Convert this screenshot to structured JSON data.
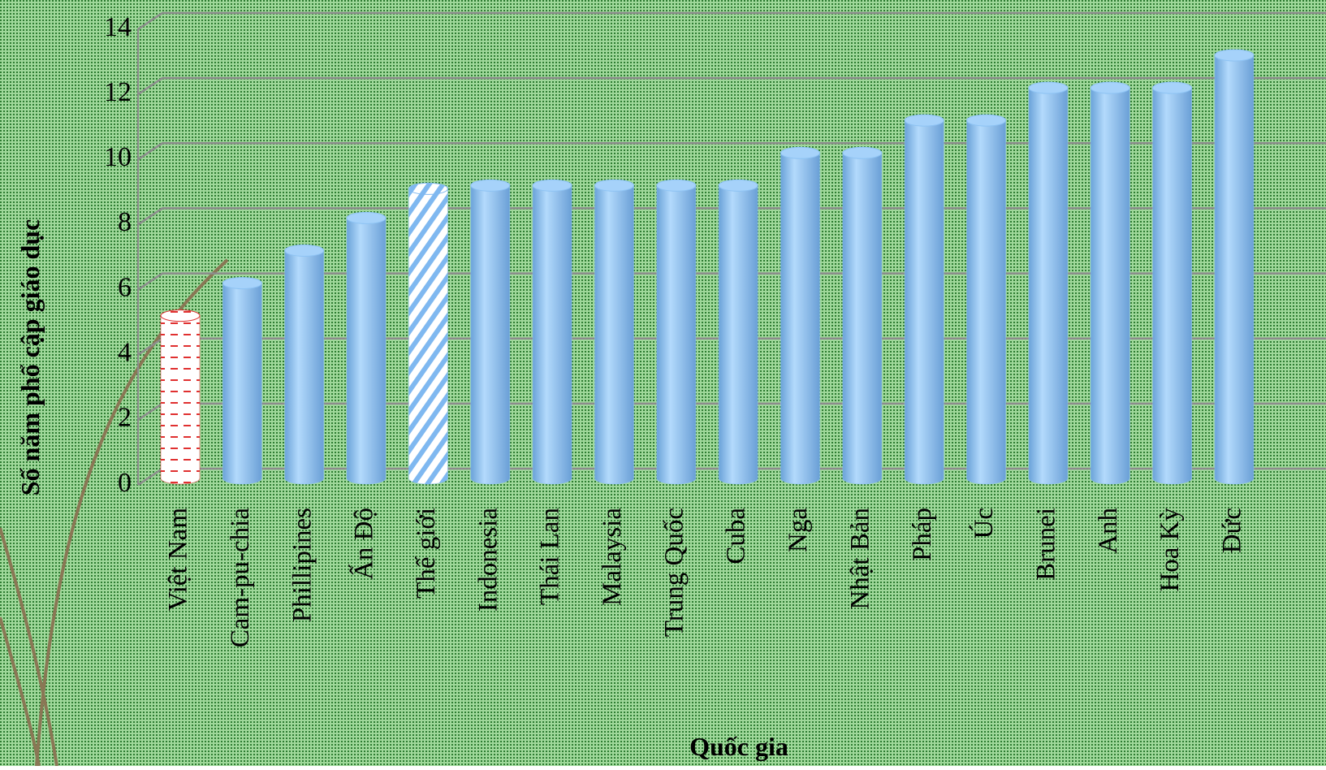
{
  "chart_data": {
    "type": "bar3d-cylinder",
    "x_label": "Quốc gia",
    "y_label": "Số năm phổ cập giáo dục",
    "categories": [
      "Việt Nam",
      "Cam-pu-chia",
      "Phillipines",
      "Ấn Độ",
      "Thế giới",
      "Indonesia",
      "Thái Lan",
      "Malaysia",
      "Trung Quốc",
      "Cuba",
      "Nga",
      "Nhật Bản",
      "Pháp",
      "Úc",
      "Brunei",
      "Anh",
      "Hoa Kỳ",
      "Đức"
    ],
    "values": [
      5,
      6,
      7,
      8,
      8.9,
      9,
      9,
      9,
      9,
      9,
      10,
      10,
      11,
      11,
      12,
      12,
      12,
      13
    ],
    "colors": [
      "#e03030",
      "#8ec3f3",
      "#8ec3f3",
      "#8ec3f3",
      "#7fb8f0",
      "#8ec3f3",
      "#8ec3f3",
      "#8ec3f3",
      "#8ec3f3",
      "#8ec3f3",
      "#8ec3f3",
      "#8ec3f3",
      "#8ec3f3",
      "#8ec3f3",
      "#8ec3f3",
      "#8ec3f3",
      "#8ec3f3",
      "#8ec3f3"
    ],
    "fill_styles": [
      "dashed",
      "solid",
      "solid",
      "solid",
      "striped",
      "solid",
      "solid",
      "solid",
      "solid",
      "solid",
      "solid",
      "solid",
      "solid",
      "solid",
      "solid",
      "solid",
      "solid",
      "solid"
    ],
    "ylim": [
      0,
      14
    ],
    "yticks": [
      0,
      2,
      4,
      6,
      8,
      10,
      12,
      14
    ],
    "grid": true
  }
}
